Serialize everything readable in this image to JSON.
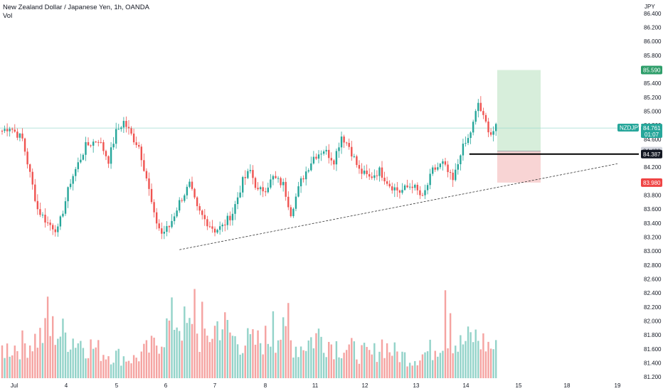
{
  "header": {
    "title": "New Zealand Dollar / Japanese Yen, 1h, OANDA",
    "vol_label": "Vol"
  },
  "axis": {
    "currency": "JPY"
  },
  "colors": {
    "up": "#26a69a",
    "down": "#ef5350",
    "vol_up": "#93d3c9",
    "vol_down": "#f5a3a1",
    "profit_zone": "#d7eedb",
    "loss_zone": "#f8d4d4",
    "target_tag": "#2e9e6a",
    "stop_tag": "#ef4444",
    "price_tag": "#26a69a",
    "entry_tag": "#131722"
  },
  "chart_data": {
    "type": "candlestick",
    "symbol": "NZDJPY",
    "title": "New Zealand Dollar / Japanese Yen, 1h, OANDA",
    "ylim": [
      80.95,
      86.6
    ],
    "y_ticks": [
      "86.400",
      "86.200",
      "86.000",
      "85.800",
      "85.600",
      "85.400",
      "85.200",
      "85.000",
      "84.800",
      "84.600",
      "84.400",
      "84.200",
      "84.000",
      "83.800",
      "83.600",
      "83.400",
      "83.200",
      "83.000",
      "82.800",
      "82.600",
      "82.400",
      "82.200",
      "82.000",
      "81.800",
      "81.600",
      "81.400",
      "81.200"
    ],
    "x_ticks": [
      "Jul",
      "4",
      "5",
      "6",
      "7",
      "8",
      "11",
      "12",
      "13",
      "14",
      "15",
      "18",
      "19"
    ],
    "current_price": "84.761",
    "countdown": "01:07",
    "symbol_tag": "NZDJPY",
    "target_price": "85.590",
    "stop_price": "83.980",
    "entry_price": "84.430",
    "horizontal_line_price": "84.387",
    "trendline": {
      "start": [
        -6.0,
        83.02
      ],
      "end": [
        119.0,
        84.25
      ]
    },
    "resistance_line": 84.76,
    "candle_path": [
      [
        0,
        84.72
      ],
      [
        3,
        84.78
      ],
      [
        8,
        84.6
      ],
      [
        14,
        83.6
      ],
      [
        18,
        83.4
      ],
      [
        22,
        83.3
      ],
      [
        27,
        84.0
      ],
      [
        33,
        84.5
      ],
      [
        38,
        84.6
      ],
      [
        42,
        84.3
      ],
      [
        45,
        84.7
      ],
      [
        48,
        84.85
      ],
      [
        52,
        84.6
      ],
      [
        54,
        84.5
      ],
      [
        57,
        84.05
      ],
      [
        60,
        83.5
      ],
      [
        63,
        83.25
      ],
      [
        66,
        83.35
      ],
      [
        70,
        83.7
      ],
      [
        74,
        83.95
      ],
      [
        77,
        83.6
      ],
      [
        80,
        83.45
      ],
      [
        84,
        83.3
      ],
      [
        87,
        83.35
      ],
      [
        91,
        83.55
      ],
      [
        95,
        84.0
      ],
      [
        98,
        84.15
      ],
      [
        101,
        83.85
      ],
      [
        104,
        83.9
      ],
      [
        107,
        84.05
      ],
      [
        111,
        83.95
      ],
      [
        114,
        83.55
      ],
      [
        118,
        84.0
      ],
      [
        123,
        84.35
      ],
      [
        127,
        84.45
      ],
      [
        131,
        84.3
      ],
      [
        134,
        84.65
      ],
      [
        137,
        84.5
      ],
      [
        141,
        84.15
      ],
      [
        145,
        84.05
      ],
      [
        149,
        84.15
      ],
      [
        153,
        83.95
      ],
      [
        157,
        83.85
      ],
      [
        162,
        83.95
      ],
      [
        166,
        83.75
      ],
      [
        170,
        84.15
      ],
      [
        174,
        84.25
      ],
      [
        178,
        84.0
      ],
      [
        180,
        84.25
      ],
      [
        181,
        84.42
      ],
      [
        184,
        84.6
      ],
      [
        186,
        84.82
      ],
      [
        188,
        85.12
      ],
      [
        190,
        84.9
      ],
      [
        193,
        84.68
      ],
      [
        195,
        84.76
      ]
    ],
    "candle_count": 196,
    "vol_ylim": [
      0,
      145
    ],
    "vol_path": [
      [
        0,
        45
      ],
      [
        10,
        55
      ],
      [
        20,
        75
      ],
      [
        30,
        60
      ],
      [
        40,
        40
      ],
      [
        52,
        30
      ],
      [
        60,
        50
      ],
      [
        68,
        95
      ],
      [
        80,
        55
      ],
      [
        86,
        90
      ],
      [
        92,
        60
      ],
      [
        100,
        55
      ],
      [
        110,
        70
      ],
      [
        117,
        48
      ],
      [
        125,
        68
      ],
      [
        130,
        55
      ],
      [
        140,
        42
      ],
      [
        146,
        35
      ],
      [
        150,
        55
      ],
      [
        155,
        40
      ],
      [
        162,
        30
      ],
      [
        170,
        45
      ],
      [
        176,
        72
      ],
      [
        180,
        50
      ],
      [
        186,
        65
      ],
      [
        195,
        45
      ]
    ],
    "vol_spikes": [
      [
        18,
        128
      ],
      [
        76,
        140
      ],
      [
        79,
        120
      ],
      [
        107,
        105
      ],
      [
        113,
        118
      ],
      [
        175,
        138
      ],
      [
        177,
        102
      ]
    ]
  }
}
